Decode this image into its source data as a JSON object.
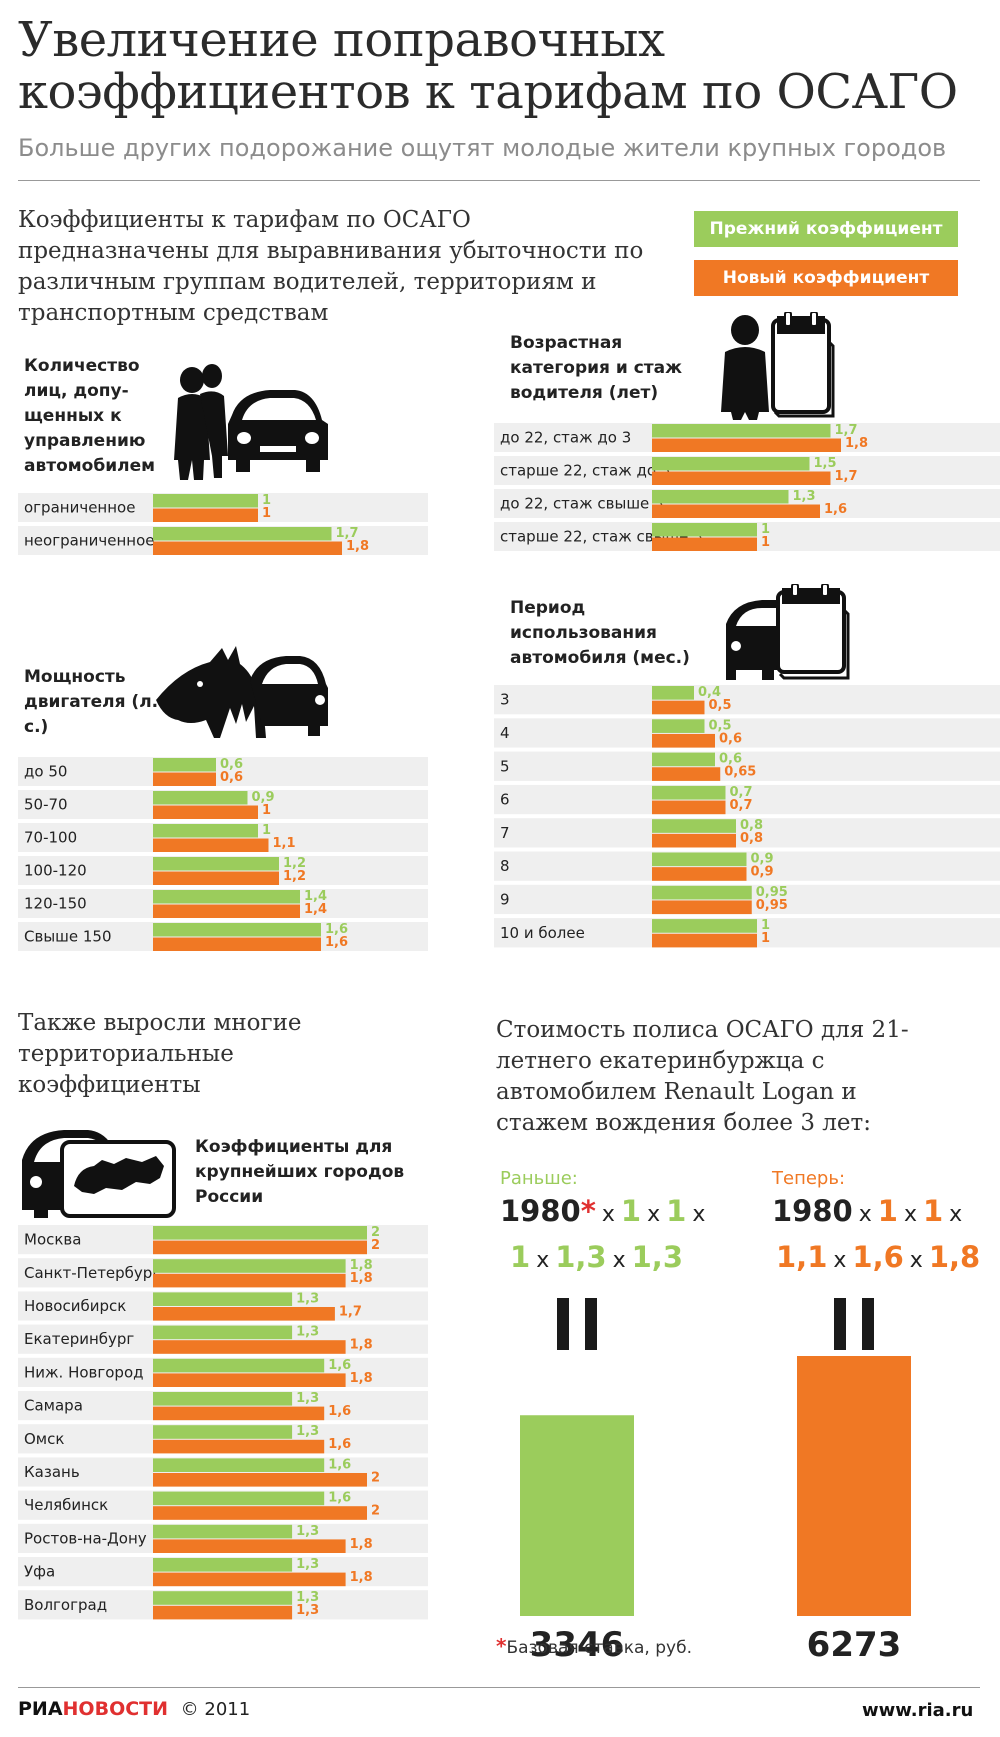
{
  "colors": {
    "old": "#9bcc5c",
    "new": "#f07824",
    "row_bg": "#efefef",
    "text": "#222222"
  },
  "header": {
    "title": "Увеличение поправочных коэффициентов к тарифам по ОСАГО",
    "subtitle": "Больше других подорожание ощутят молодые жители крупных городов",
    "intro": "Коэффициенты к тарифам по ОСАГО предназначены для выравнивания убыточности по различным группам водителей, территориям и транспортным средствам"
  },
  "legend": {
    "old": "Прежний коэффициент",
    "new": "Новый коэффициент"
  },
  "chart_data": [
    {
      "type": "bar",
      "title": "Количество лиц, допу-щенных к управлению автомобилем",
      "categories": [
        "ограниченное",
        "неограниченное"
      ],
      "series": [
        {
          "name": "Прежний коэффициент",
          "values": [
            1,
            1.7
          ],
          "labels": [
            "1",
            "1,7"
          ]
        },
        {
          "name": "Новый коэффициент",
          "values": [
            1,
            1.8
          ],
          "labels": [
            "1",
            "1,8"
          ]
        }
      ]
    },
    {
      "type": "bar",
      "title": "Мощность двигателя (л. с.)",
      "categories": [
        "до 50",
        "50-70",
        "70-100",
        "100-120",
        "120-150",
        "Свыше 150"
      ],
      "series": [
        {
          "name": "Прежний коэффициент",
          "values": [
            0.6,
            0.9,
            1,
            1.2,
            1.4,
            1.6
          ],
          "labels": [
            "0,6",
            "0,9",
            "1",
            "1,2",
            "1,4",
            "1,6"
          ]
        },
        {
          "name": "Новый коэффициент",
          "values": [
            0.6,
            1,
            1.1,
            1.2,
            1.4,
            1.6
          ],
          "labels": [
            "0,6",
            "1",
            "1,1",
            "1,2",
            "1,4",
            "1,6"
          ]
        }
      ]
    },
    {
      "type": "bar",
      "title": "Возрастная категория и стаж водителя (лет)",
      "categories": [
        "до 22, стаж до 3",
        "старше 22, стаж до 3",
        "до 22, стаж свыше 3",
        "старше 22, стаж свыше 3"
      ],
      "series": [
        {
          "name": "Прежний коэффициент",
          "values": [
            1.7,
            1.5,
            1.3,
            1
          ],
          "labels": [
            "1,7",
            "1,5",
            "1,3",
            "1"
          ]
        },
        {
          "name": "Новый коэффициент",
          "values": [
            1.8,
            1.7,
            1.6,
            1
          ],
          "labels": [
            "1,8",
            "1,7",
            "1,6",
            "1"
          ]
        }
      ]
    },
    {
      "type": "bar",
      "title": "Период использования автомобиля (мес.)",
      "categories": [
        "3",
        "4",
        "5",
        "6",
        "7",
        "8",
        "9",
        "10 и более"
      ],
      "series": [
        {
          "name": "Прежний коэффициент",
          "values": [
            0.4,
            0.5,
            0.6,
            0.7,
            0.8,
            0.9,
            0.95,
            1
          ],
          "labels": [
            "0,4",
            "0,5",
            "0,6",
            "0,7",
            "0,8",
            "0,9",
            "0,95",
            "1"
          ]
        },
        {
          "name": "Новый коэффициент",
          "values": [
            0.5,
            0.6,
            0.65,
            0.7,
            0.8,
            0.9,
            0.95,
            1
          ],
          "labels": [
            "0,5",
            "0,6",
            "0,65",
            "0,7",
            "0,8",
            "0,9",
            "0,95",
            "1"
          ]
        }
      ]
    },
    {
      "type": "bar",
      "title": "Коэффициенты для крупнейших городов России",
      "categories": [
        "Москва",
        "Санкт-Петербург",
        "Новосибирск",
        "Екатеринбург",
        "Ниж. Новгород",
        "Самара",
        "Омск",
        "Казань",
        "Челябинск",
        "Ростов-на-Дону",
        "Уфа",
        "Волгоград"
      ],
      "series": [
        {
          "name": "Прежний коэффициент",
          "values": [
            2,
            1.8,
            1.3,
            1.3,
            1.6,
            1.3,
            1.3,
            1.6,
            1.6,
            1.3,
            1.3,
            1.3
          ],
          "labels": [
            "2",
            "1,8",
            "1,3",
            "1,3",
            "1,6",
            "1,3",
            "1,3",
            "1,6",
            "1,6",
            "1,3",
            "1,3",
            "1,3"
          ]
        },
        {
          "name": "Новый коэффициент",
          "values": [
            2,
            1.8,
            1.7,
            1.8,
            1.8,
            1.6,
            1.6,
            2,
            2,
            1.8,
            1.8,
            1.3
          ],
          "labels": [
            "2",
            "1,8",
            "1,7",
            "1,8",
            "1,8",
            "1,6",
            "1,6",
            "2",
            "2",
            "1,8",
            "1,8",
            "1,3"
          ]
        }
      ]
    },
    {
      "type": "bar",
      "title": "Стоимость полиса ОСАГО для 21-летнего екатеринбуржца с автомобилем Renault Logan и стажем вождения более 3 лет:",
      "categories": [
        "Раньше:",
        "Теперь:"
      ],
      "values": [
        3346,
        6273
      ],
      "labels": [
        "3346",
        "6273"
      ]
    }
  ],
  "territorial": {
    "heading": "Также выросли многие территориальные коэффициенты"
  },
  "calc": {
    "heading": "Стоимость полиса ОСАГО для 21-летнего екатеринбуржца с автомобилем Renault Logan и стажем вождения более 3 лет:",
    "before": {
      "label": "Раньше:",
      "base": "1980",
      "star": "*",
      "f1": "1",
      "f2": "1",
      "f3": "1",
      "f4": "1,3",
      "f5": "1,3",
      "result": "3346"
    },
    "after": {
      "label": "Теперь:",
      "base": "1980",
      "f1": "1",
      "f2": "1",
      "f3": "1,1",
      "f4": "1,6",
      "f5": "1,8",
      "result": "6273"
    },
    "times": "x",
    "footnote_star": "*",
    "footnote": "Базовая ставка, руб."
  },
  "icons": [
    "people-car-icon",
    "old-man-calendar-icon",
    "horse-car-icon",
    "car-calendar-icon",
    "car-russia-map-icon"
  ],
  "footer": {
    "logo_ria": "РИА",
    "logo_novosti": "НОВОСТИ",
    "copyright": "© 2011",
    "site": "www.ria.ru"
  }
}
